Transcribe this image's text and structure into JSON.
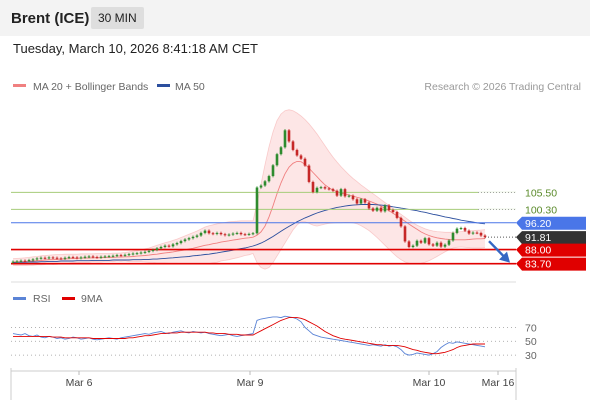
{
  "header": {
    "title": "Brent (ICE)",
    "interval": "30 MIN"
  },
  "datetime": "Tuesday, March 10, 2026 8:41:18 AM CET",
  "legend": {
    "bollinger_label": "MA 20 + Bollinger Bands",
    "ma50_label": "MA 50",
    "copyright": "Research © 2026 Trading Central",
    "rsi_label": "RSI",
    "rsi_ma_label": "9MA"
  },
  "colors": {
    "bollinger": "#f08080",
    "band_fill": "#fde2e2",
    "ma50": "#2c4f9e",
    "resistance": "#4a76e8",
    "support": "#e00000",
    "current": "#333333",
    "up_candle": "#2e8b2e",
    "down_candle": "#c62828",
    "target_line": "#a6cc7a",
    "rsi": "#5b84d6",
    "rsi_ma": "#e00000",
    "arrow": "#3567c4"
  },
  "chart_data": {
    "type": "candlestick",
    "xlabels": [
      "Mar 6",
      "Mar 9",
      "Mar 10",
      "Mar 16"
    ],
    "price_levels": [
      {
        "value": 105.5,
        "label": "105.50",
        "kind": "target"
      },
      {
        "value": 100.3,
        "label": "100.30",
        "kind": "target"
      },
      {
        "value": 96.2,
        "label": "96.20",
        "kind": "resistance"
      },
      {
        "value": 91.81,
        "label": "91.81",
        "kind": "current"
      },
      {
        "value": 88.0,
        "label": "88.00",
        "kind": "support"
      },
      {
        "value": 83.7,
        "label": "83.70",
        "kind": "support"
      }
    ],
    "price_range": [
      79,
      135
    ],
    "rsi_levels": [
      70,
      50,
      30
    ],
    "rsi_range": [
      10,
      95
    ],
    "close": [
      84.3,
      84.4,
      84.6,
      84.5,
      84.8,
      85.0,
      85.3,
      85.5,
      85.4,
      85.6,
      85.5,
      85.3,
      85.2,
      85.5,
      85.7,
      85.6,
      85.4,
      85.6,
      85.8,
      85.9,
      85.7,
      85.6,
      85.8,
      85.9,
      86.0,
      86.1,
      86.3,
      86.2,
      86.4,
      86.6,
      86.8,
      86.9,
      87.1,
      87.3,
      87.6,
      87.9,
      88.4,
      88.8,
      89.2,
      89.0,
      89.6,
      90.0,
      90.6,
      91.1,
      91.5,
      91.9,
      92.3,
      93.1,
      93.8,
      93.0,
      92.8,
      93.1,
      92.7,
      92.4,
      92.6,
      92.9,
      93.1,
      92.7,
      92.6,
      92.8,
      93.0,
      107.0,
      107.6,
      108.9,
      110.5,
      113.8,
      117.2,
      119.3,
      124.5,
      121.1,
      118.5,
      116.8,
      115.8,
      113.7,
      108.7,
      105.6,
      106.9,
      107.1,
      106.7,
      106.5,
      106.0,
      104.5,
      106.5,
      104.3,
      104.5,
      103.4,
      102.1,
      103.4,
      102.4,
      100.6,
      99.9,
      100.8,
      99.7,
      101.5,
      100.1,
      99.5,
      97.7,
      95.1,
      90.5,
      88.8,
      89.2,
      90.7,
      90.1,
      91.5,
      89.6,
      89.2,
      90.1,
      88.9,
      89.5,
      90.8,
      93.1,
      94.4,
      94.6,
      93.8,
      92.9,
      93.2,
      93.1,
      92.3,
      91.8
    ],
    "ma20": [
      84.2,
      84.2,
      84.3,
      84.3,
      84.4,
      84.5,
      84.6,
      84.7,
      84.8,
      84.9,
      84.9,
      85.0,
      85.1,
      85.1,
      85.2,
      85.3,
      85.3,
      85.4,
      85.4,
      85.4,
      85.5,
      85.5,
      85.5,
      85.6,
      85.6,
      85.6,
      85.7,
      85.7,
      85.8,
      85.8,
      85.9,
      86.0,
      86.1,
      86.2,
      86.3,
      86.5,
      86.6,
      86.8,
      87.0,
      87.1,
      87.3,
      87.5,
      87.7,
      87.9,
      88.2,
      88.4,
      88.7,
      89.0,
      89.3,
      89.5,
      89.8,
      90.0,
      90.3,
      90.5,
      90.7,
      90.9,
      91.1,
      91.3,
      91.5,
      91.6,
      91.8,
      92.4,
      93.4,
      95.2,
      98.0,
      101.4,
      105.1,
      108.4,
      111.2,
      113.2,
      114.4,
      115.0,
      114.9,
      114.1,
      112.9,
      111.6,
      110.3,
      109.0,
      107.8,
      106.9,
      106.2,
      105.7,
      105.3,
      105.0,
      104.7,
      104.4,
      104.0,
      103.7,
      103.3,
      102.9,
      102.4,
      101.9,
      101.3,
      100.6,
      99.9,
      99.1,
      98.3,
      97.5,
      96.7,
      95.8,
      95.0,
      94.2,
      93.4,
      92.8,
      92.3,
      91.9,
      91.6,
      91.4,
      91.2,
      91.1,
      91.0,
      91.0,
      91.0,
      91.0,
      91.1,
      91.2,
      91.3,
      91.3,
      91.4
    ],
    "upper": [
      85.2,
      85.3,
      85.4,
      85.5,
      85.6,
      85.8,
      85.9,
      86.1,
      86.2,
      86.3,
      86.4,
      86.5,
      86.5,
      86.6,
      86.6,
      86.6,
      86.6,
      86.7,
      86.7,
      86.7,
      86.7,
      86.8,
      86.8,
      86.8,
      86.8,
      86.9,
      86.9,
      87.0,
      87.1,
      87.3,
      87.5,
      87.7,
      87.9,
      88.2,
      88.5,
      88.9,
      89.3,
      89.7,
      90.1,
      90.4,
      90.8,
      91.2,
      91.7,
      92.2,
      92.7,
      93.2,
      93.7,
      94.3,
      94.9,
      95.3,
      95.6,
      95.9,
      96.1,
      96.3,
      96.5,
      96.6,
      96.7,
      96.8,
      96.8,
      96.8,
      96.8,
      102.0,
      108.0,
      114.0,
      119.5,
      124.0,
      127.5,
      129.5,
      130.5,
      130.8,
      130.5,
      129.8,
      128.9,
      127.8,
      126.5,
      125.0,
      123.4,
      121.6,
      119.8,
      118.0,
      116.3,
      114.8,
      113.4,
      112.1,
      110.9,
      109.8,
      108.8,
      107.8,
      106.9,
      106.0,
      105.1,
      104.2,
      103.3,
      102.4,
      101.5,
      100.6,
      99.7,
      98.8,
      97.9,
      97.0,
      96.2,
      95.5,
      94.9,
      94.4,
      94.0,
      93.7,
      93.5,
      93.4,
      93.3,
      93.3,
      93.3,
      93.4,
      93.5,
      93.6,
      93.7,
      93.8,
      93.9,
      94.0,
      94.1
    ],
    "lower": [
      83.2,
      83.1,
      83.2,
      83.1,
      83.2,
      83.2,
      83.3,
      83.3,
      83.4,
      83.5,
      83.4,
      83.5,
      83.7,
      83.6,
      83.8,
      84.0,
      84.0,
      84.1,
      84.1,
      84.1,
      84.3,
      84.2,
      84.2,
      84.4,
      84.4,
      84.3,
      84.5,
      84.4,
      84.5,
      84.3,
      84.3,
      84.3,
      84.3,
      84.2,
      84.1,
      84.1,
      83.9,
      83.9,
      83.9,
      83.8,
      83.8,
      83.8,
      83.7,
      83.6,
      83.7,
      83.6,
      83.7,
      83.7,
      83.7,
      83.7,
      84.0,
      84.1,
      84.5,
      84.7,
      84.9,
      85.2,
      85.5,
      85.8,
      86.2,
      86.4,
      86.8,
      84.0,
      82.5,
      82.0,
      82.5,
      84.0,
      86.0,
      88.0,
      90.0,
      92.0,
      94.0,
      95.5,
      96.5,
      96.5,
      96.0,
      95.5,
      95.2,
      95.5,
      95.8,
      96.0,
      96.1,
      96.2,
      96.2,
      96.3,
      96.3,
      96.2,
      95.9,
      95.3,
      94.6,
      93.8,
      92.8,
      91.7,
      90.5,
      89.3,
      88.1,
      86.9,
      85.8,
      84.9,
      84.2,
      83.8,
      83.6,
      83.6,
      83.8,
      84.1,
      84.6,
      85.2,
      85.9,
      86.6,
      87.3,
      87.9,
      88.5,
      88.7,
      88.8,
      88.7,
      88.6,
      88.5,
      88.5,
      88.5,
      88.6
    ],
    "ma50": [
      84.0,
      84.1,
      84.1,
      84.1,
      84.2,
      84.2,
      84.2,
      84.3,
      84.3,
      84.4,
      84.4,
      84.4,
      84.5,
      84.5,
      84.5,
      84.5,
      84.6,
      84.6,
      84.6,
      84.6,
      84.7,
      84.7,
      84.7,
      84.7,
      84.7,
      84.8,
      84.8,
      84.8,
      84.8,
      84.8,
      84.9,
      84.9,
      84.9,
      85.0,
      85.0,
      85.1,
      85.1,
      85.2,
      85.3,
      85.4,
      85.5,
      85.6,
      85.7,
      85.8,
      85.9,
      86.1,
      86.2,
      86.3,
      86.5,
      86.6,
      86.8,
      87.0,
      87.2,
      87.4,
      87.6,
      87.8,
      88.1,
      88.3,
      88.5,
      88.8,
      89.1,
      89.5,
      90.0,
      90.6,
      91.3,
      92.0,
      92.8,
      93.6,
      94.4,
      95.1,
      95.8,
      96.5,
      97.1,
      97.7,
      98.2,
      98.7,
      99.2,
      99.6,
      100.0,
      100.3,
      100.6,
      100.9,
      101.1,
      101.3,
      101.5,
      101.6,
      101.7,
      101.8,
      101.8,
      101.8,
      101.8,
      101.7,
      101.6,
      101.5,
      101.3,
      101.1,
      100.9,
      100.7,
      100.5,
      100.3,
      100.1,
      99.9,
      99.6,
      99.4,
      99.1,
      98.8,
      98.6,
      98.3,
      98.0,
      97.8,
      97.5,
      97.3,
      97.0,
      96.8,
      96.6,
      96.4,
      96.2,
      96.0,
      95.9
    ],
    "rsi": [
      61,
      60,
      59,
      61,
      58,
      57,
      59,
      56,
      55,
      57,
      56,
      54,
      55,
      53,
      54,
      56,
      55,
      53,
      54,
      55,
      53,
      52,
      53,
      54,
      55,
      54,
      53,
      55,
      56,
      57,
      58,
      59,
      60,
      61,
      60,
      62,
      63,
      64,
      62,
      61,
      63,
      64,
      65,
      63,
      62,
      64,
      63,
      62,
      63,
      61,
      60,
      59,
      58,
      59,
      60,
      58,
      57,
      58,
      59,
      60,
      61,
      80,
      82,
      83,
      84,
      85,
      85,
      84,
      86,
      85,
      84,
      82,
      78,
      70,
      65,
      60,
      58,
      56,
      55,
      54,
      53,
      52,
      51,
      50,
      49,
      48,
      47,
      46,
      45,
      44,
      45,
      44,
      43,
      45,
      43,
      44,
      42,
      38,
      32,
      30,
      31,
      33,
      32,
      31,
      30,
      32,
      35,
      41,
      45,
      48,
      47,
      49,
      48,
      47,
      46,
      45,
      44,
      43,
      42
    ],
    "rsi_ma": [
      57,
      57,
      57,
      57,
      57,
      57,
      57,
      57,
      57,
      57,
      56,
      56,
      56,
      55,
      55,
      55,
      55,
      55,
      55,
      55,
      54,
      54,
      54,
      54,
      54,
      54,
      54,
      54,
      54,
      55,
      55,
      56,
      57,
      58,
      58,
      59,
      60,
      61,
      61,
      62,
      62,
      62,
      63,
      63,
      63,
      63,
      63,
      63,
      63,
      62,
      62,
      61,
      61,
      61,
      60,
      60,
      60,
      59,
      59,
      59,
      59,
      62,
      65,
      68,
      71,
      74,
      77,
      80,
      82,
      84,
      84,
      84,
      83,
      81,
      78,
      75,
      72,
      68,
      64,
      61,
      58,
      56,
      54,
      53,
      52,
      51,
      50,
      49,
      48,
      47,
      46,
      45,
      45,
      44,
      44,
      44,
      44,
      43,
      42,
      40,
      38,
      37,
      35,
      34,
      33,
      32,
      32,
      33,
      34,
      36,
      38,
      41,
      43,
      44,
      45,
      46,
      46,
      46,
      46
    ]
  }
}
